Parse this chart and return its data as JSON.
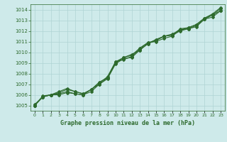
{
  "title": "Graphe pression niveau de la mer (hPa)",
  "x_labels": [
    "0",
    "1",
    "2",
    "3",
    "4",
    "5",
    "6",
    "7",
    "8",
    "9",
    "10",
    "11",
    "12",
    "13",
    "14",
    "15",
    "16",
    "17",
    "18",
    "19",
    "20",
    "21",
    "22",
    "23"
  ],
  "x_values": [
    0,
    1,
    2,
    3,
    4,
    5,
    6,
    7,
    8,
    9,
    10,
    11,
    12,
    13,
    14,
    15,
    16,
    17,
    18,
    19,
    20,
    21,
    22,
    23
  ],
  "ylim": [
    1004.5,
    1014.5
  ],
  "yticks": [
    1005,
    1006,
    1007,
    1008,
    1009,
    1010,
    1011,
    1012,
    1013,
    1014
  ],
  "line1": [
    1005.1,
    1005.8,
    1006.0,
    1006.0,
    1006.2,
    1006.1,
    1006.0,
    1006.5,
    1007.2,
    1007.6,
    1009.1,
    1009.3,
    1009.6,
    1010.3,
    1010.9,
    1011.0,
    1011.3,
    1011.5,
    1012.1,
    1012.2,
    1012.4,
    1013.1,
    1013.3,
    1013.9
  ],
  "line2": [
    1005.0,
    1005.8,
    1006.0,
    1006.1,
    1006.3,
    1006.1,
    1006.0,
    1006.3,
    1007.0,
    1007.5,
    1008.9,
    1009.4,
    1009.5,
    1010.2,
    1010.8,
    1011.1,
    1011.5,
    1011.6,
    1012.0,
    1012.2,
    1012.5,
    1013.1,
    1013.5,
    1013.9
  ],
  "line3": [
    1005.0,
    1005.8,
    1006.0,
    1006.2,
    1006.5,
    1006.3,
    1006.1,
    1006.5,
    1007.0,
    1007.6,
    1009.0,
    1009.5,
    1009.8,
    1010.2,
    1010.8,
    1011.2,
    1011.5,
    1011.7,
    1012.1,
    1012.3,
    1012.6,
    1013.2,
    1013.6,
    1014.2
  ],
  "line4": [
    1005.0,
    1005.9,
    1006.0,
    1006.3,
    1006.6,
    1006.3,
    1006.1,
    1006.5,
    1007.1,
    1007.7,
    1009.1,
    1009.5,
    1009.7,
    1010.4,
    1010.9,
    1011.1,
    1011.5,
    1011.6,
    1012.2,
    1012.3,
    1012.6,
    1013.2,
    1013.5,
    1014.1
  ],
  "line_color": "#2d6a2d",
  "bg_color": "#ceeaea",
  "grid_color": "#afd4d4",
  "label_color": "#2d6a2d",
  "title_color": "#2d6a2d",
  "figsize": [
    3.2,
    2.0
  ],
  "dpi": 100
}
